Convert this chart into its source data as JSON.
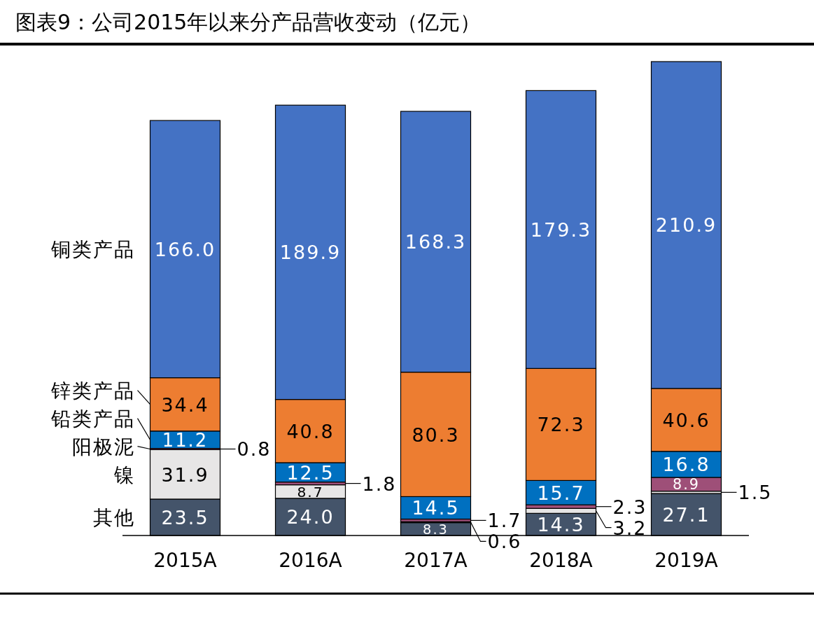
{
  "chart_data": {
    "type": "bar",
    "title": "图表9：公司2015年以来分产品营收变动（亿元）",
    "stacked": true,
    "legend": "left",
    "categories": [
      "2015A",
      "2016A",
      "2017A",
      "2018A",
      "2019A"
    ],
    "series": [
      {
        "name": "其他",
        "color": "#44546a",
        "values": [
          23.5,
          24.0,
          8.3,
          14.3,
          27.1
        ],
        "value_labels": [
          "23.5",
          "24.0",
          "8.3",
          "14.3",
          "27.1"
        ]
      },
      {
        "name": "镍",
        "color": "#e7e6e6",
        "values": [
          31.9,
          8.7,
          0.6,
          3.2,
          1.5
        ],
        "value_labels": [
          "31.9",
          "8.7",
          "0.6",
          "3.2",
          "1.5"
        ]
      },
      {
        "name": "阳极泥",
        "color": "#9e4f78",
        "values": [
          0.8,
          1.8,
          1.7,
          2.3,
          8.9
        ],
        "value_labels": [
          "0.8",
          "1.8",
          "1.7",
          "2.3",
          "8.9"
        ]
      },
      {
        "name": "铅类产品",
        "color": "#0070c0",
        "values": [
          11.2,
          12.5,
          14.5,
          15.7,
          16.8
        ],
        "value_labels": [
          "11.2",
          "12.5",
          "14.5",
          "15.7",
          "16.8"
        ]
      },
      {
        "name": "锌类产品",
        "color": "#ed7d31",
        "values": [
          34.4,
          40.8,
          80.3,
          72.3,
          40.6
        ],
        "value_labels": [
          "34.4",
          "40.8",
          "80.3",
          "72.3",
          "40.6"
        ]
      },
      {
        "name": "铜类产品",
        "color": "#4472c4",
        "values": [
          166.0,
          189.9,
          168.3,
          179.3,
          210.9
        ],
        "value_labels": [
          "166.0",
          "189.9",
          "168.3",
          "179.3",
          "210.9"
        ]
      }
    ]
  }
}
